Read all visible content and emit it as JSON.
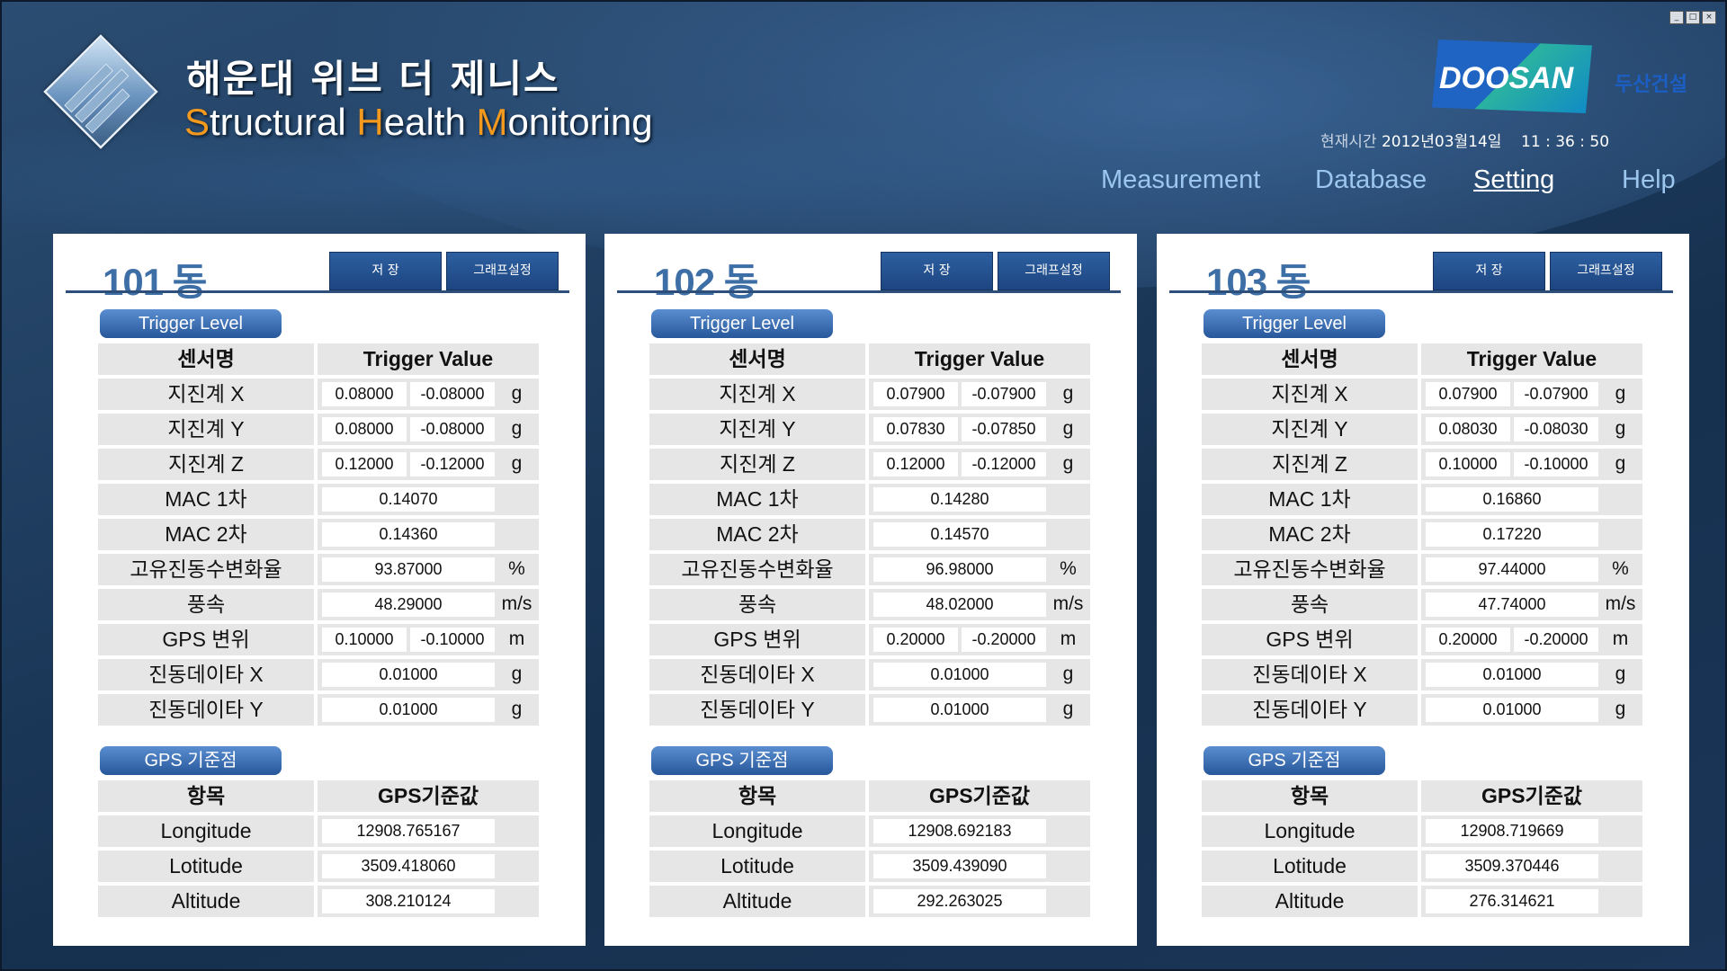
{
  "window_controls": [
    "_",
    "□",
    "×"
  ],
  "header": {
    "title_ko": "해운대 위브 더 제니스",
    "title_en_parts": [
      {
        "t": "S",
        "accent": true
      },
      {
        "t": "tructural ",
        "accent": false
      },
      {
        "t": "H",
        "accent": true
      },
      {
        "t": "ealth ",
        "accent": false
      },
      {
        "t": "M",
        "accent": true
      },
      {
        "t": "onitoring",
        "accent": false
      }
    ],
    "brand_logo": "DOOSAN",
    "brand_ko": "두산건설",
    "clock_label": "현재시간",
    "clock_date": "2012년03월14일",
    "clock_time": "11 : 36 : 50",
    "accent_color": "#f39a1e"
  },
  "nav": [
    {
      "label": "Measurement",
      "active": false
    },
    {
      "label": "Database",
      "active": false
    },
    {
      "label": "Setting",
      "active": true
    },
    {
      "label": "Help",
      "active": false
    }
  ],
  "panels": [
    {
      "title": "101 동",
      "save_label": "저  장",
      "graph_label": "그래프설정",
      "trigger_section": "Trigger Level",
      "col_sensor": "센서명",
      "col_value": "Trigger Value",
      "rows": [
        {
          "name": "지진계 X",
          "v1": "0.08000",
          "v2": "-0.08000",
          "unit": "g"
        },
        {
          "name": "지진계 Y",
          "v1": "0.08000",
          "v2": "-0.08000",
          "unit": "g"
        },
        {
          "name": "지진계 Z",
          "v1": "0.12000",
          "v2": "-0.12000",
          "unit": "g"
        },
        {
          "name": "MAC 1차",
          "v1": "0.14070",
          "v2": null,
          "unit": ""
        },
        {
          "name": "MAC 2차",
          "v1": "0.14360",
          "v2": null,
          "unit": ""
        },
        {
          "name": "고유진동수변화율",
          "v1": "93.87000",
          "v2": null,
          "unit": "%"
        },
        {
          "name": "풍속",
          "v1": "48.29000",
          "v2": null,
          "unit": "m/s"
        },
        {
          "name": "GPS 변위",
          "v1": "0.10000",
          "v2": "-0.10000",
          "unit": "m"
        },
        {
          "name": "진동데이타  X",
          "v1": "0.01000",
          "v2": null,
          "unit": "g"
        },
        {
          "name": "진동데이타  Y",
          "v1": "0.01000",
          "v2": null,
          "unit": "g"
        }
      ],
      "gps_section": "GPS 기준점",
      "col_item": "항목",
      "col_gps": "GPS기준값",
      "gps": [
        {
          "name": "Longitude",
          "value": "12908.765167"
        },
        {
          "name": "Lotitude",
          "value": "3509.418060"
        },
        {
          "name": "Altitude",
          "value": "308.210124"
        }
      ]
    },
    {
      "title": "102 동",
      "save_label": "저  장",
      "graph_label": "그래프설정",
      "trigger_section": "Trigger Level",
      "col_sensor": "센서명",
      "col_value": "Trigger Value",
      "rows": [
        {
          "name": "지진계 X",
          "v1": "0.07900",
          "v2": "-0.07900",
          "unit": "g"
        },
        {
          "name": "지진계 Y",
          "v1": "0.07830",
          "v2": "-0.07850",
          "unit": "g"
        },
        {
          "name": "지진계 Z",
          "v1": "0.12000",
          "v2": "-0.12000",
          "unit": "g"
        },
        {
          "name": "MAC  1차",
          "v1": "0.14280",
          "v2": null,
          "unit": ""
        },
        {
          "name": "MAC  2차",
          "v1": "0.14570",
          "v2": null,
          "unit": ""
        },
        {
          "name": "고유진동수변화율",
          "v1": "96.98000",
          "v2": null,
          "unit": "%"
        },
        {
          "name": "풍속",
          "v1": "48.02000",
          "v2": null,
          "unit": "m/s"
        },
        {
          "name": "GPS 변위",
          "v1": "0.20000",
          "v2": "-0.20000",
          "unit": "m"
        },
        {
          "name": "진동데이타  X",
          "v1": "0.01000",
          "v2": null,
          "unit": "g"
        },
        {
          "name": "진동데이타  Y",
          "v1": "0.01000",
          "v2": null,
          "unit": "g"
        }
      ],
      "gps_section": "GPS 기준점",
      "col_item": "항목",
      "col_gps": "GPS기준값",
      "gps": [
        {
          "name": "Longitude",
          "value": "12908.692183"
        },
        {
          "name": "Lotitude",
          "value": "3509.439090"
        },
        {
          "name": "Altitude",
          "value": "292.263025"
        }
      ]
    },
    {
      "title": "103 동",
      "save_label": "저  장",
      "graph_label": "그래프설정",
      "trigger_section": "Trigger Level",
      "col_sensor": "센서명",
      "col_value": "Trigger Value",
      "rows": [
        {
          "name": "지진계 X",
          "v1": "0.07900",
          "v2": "-0.07900",
          "unit": "g"
        },
        {
          "name": "지진계 Y",
          "v1": "0.08030",
          "v2": "-0.08030",
          "unit": "g"
        },
        {
          "name": "지진계 Z",
          "v1": "0.10000",
          "v2": "-0.10000",
          "unit": "g"
        },
        {
          "name": "MAC  1차",
          "v1": "0.16860",
          "v2": null,
          "unit": ""
        },
        {
          "name": "MAC  2차",
          "v1": "0.17220",
          "v2": null,
          "unit": ""
        },
        {
          "name": "고유진동수변화율",
          "v1": "97.44000",
          "v2": null,
          "unit": "%"
        },
        {
          "name": "풍속",
          "v1": "47.74000",
          "v2": null,
          "unit": "m/s"
        },
        {
          "name": "GPS 변위",
          "v1": "0.20000",
          "v2": "-0.20000",
          "unit": "m"
        },
        {
          "name": "진동데이타  X",
          "v1": "0.01000",
          "v2": null,
          "unit": "g"
        },
        {
          "name": "진동데이타  Y",
          "v1": "0.01000",
          "v2": null,
          "unit": "g"
        }
      ],
      "gps_section": "GPS 기준점",
      "col_item": "항목",
      "col_gps": "GPS기준값",
      "gps": [
        {
          "name": "Longitude",
          "value": "12908.719669"
        },
        {
          "name": "Lotitude",
          "value": "3509.370446"
        },
        {
          "name": "Altitude",
          "value": "276.314621"
        }
      ]
    }
  ]
}
